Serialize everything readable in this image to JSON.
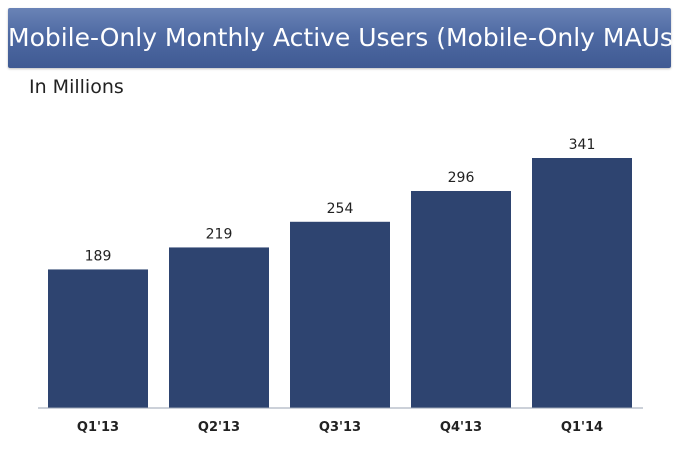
{
  "title": "Mobile-Only Monthly Active Users (Mobile-Only MAUs)",
  "subtitle": "In Millions",
  "colors": {
    "banner": "#4f6aa3",
    "bar": "#2e4470",
    "baseline": "#9aa3b3"
  },
  "chart_data": {
    "type": "bar",
    "title": "Mobile-Only Monthly Active Users (Mobile-Only MAUs)",
    "subtitle": "In Millions",
    "categories": [
      "Q1'13",
      "Q2'13",
      "Q3'13",
      "Q4'13",
      "Q1'14"
    ],
    "values": [
      189,
      219,
      254,
      296,
      341
    ],
    "data_labels": [
      "189",
      "219",
      "254",
      "296",
      "341"
    ],
    "xlabel": "",
    "ylabel": "",
    "ylim": [
      0,
      341
    ],
    "grid": false,
    "legend": "none"
  }
}
